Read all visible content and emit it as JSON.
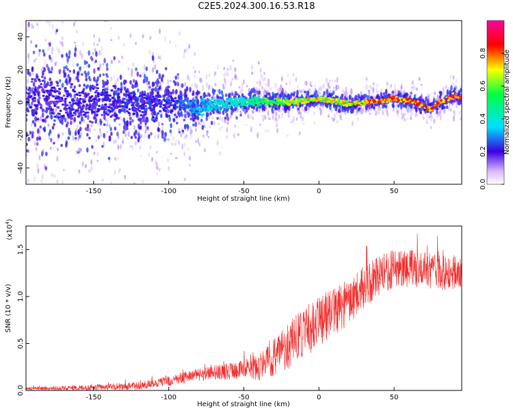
{
  "title": "C2E5.2024.300.16.53.R18",
  "chart_data": [
    {
      "type": "heatmap",
      "title": "",
      "xlabel": "Height of straight line (km)",
      "ylabel": "Frequency (Hz)",
      "xlim": [
        -195,
        95
      ],
      "ylim": [
        -50,
        50
      ],
      "xticks": [
        -150,
        -100,
        -50,
        0,
        50
      ],
      "yticks": [
        -40,
        -20,
        0,
        20,
        40
      ],
      "colorbar": {
        "label": "Normalized spectral amplitude",
        "range": [
          0,
          1
        ],
        "ticks": [
          "0.0",
          "0.2",
          "0.4",
          "0.6",
          "0.8"
        ],
        "colors": [
          "#ffffff",
          "#b06cff",
          "#3a00e0",
          "#00e0ff",
          "#00ff40",
          "#ffff00",
          "#ff0000",
          "#ff00a0"
        ]
      },
      "centerline": {
        "x": [
          -195,
          -150,
          -100,
          -80,
          -60,
          -40,
          -20,
          0,
          10,
          20,
          30,
          40,
          50,
          60,
          70,
          75,
          80,
          90,
          95
        ],
        "freq": [
          1,
          0,
          0,
          -3,
          0,
          1,
          0,
          2,
          1,
          -1,
          0,
          1,
          2,
          1,
          -2,
          -4,
          0,
          4,
          3
        ]
      },
      "amplitude_profile": {
        "x": [
          -195,
          -100,
          -80,
          -50,
          -20,
          0,
          30,
          60,
          95
        ],
        "amp": [
          0.2,
          0.25,
          0.35,
          0.5,
          0.7,
          0.75,
          0.85,
          0.9,
          0.95
        ]
      },
      "spread_hz": {
        "x": [
          -195,
          -150,
          -100,
          -80,
          -50,
          0,
          50,
          95
        ],
        "spread": [
          25,
          20,
          12,
          8,
          5,
          3,
          3,
          3
        ]
      }
    },
    {
      "type": "line",
      "title": "",
      "xlabel": "Height of straight line (km)",
      "ylabel": "SNR (10 * v/v)",
      "y_multiplier": "(x10",
      "y_multiplier_exp": "4",
      "y_multiplier_close": ")",
      "xlim": [
        -195,
        95
      ],
      "ylim": [
        0,
        1.75
      ],
      "xticks": [
        -150,
        -100,
        -50,
        0,
        50
      ],
      "yticks": [
        "0.0",
        "0.5",
        "1.0",
        "1.5"
      ],
      "series": [
        {
          "color": "#f03030",
          "mean_profile": {
            "x": [
              -195,
              -150,
              -120,
              -100,
              -80,
              -60,
              -40,
              -30,
              -20,
              -10,
              0,
              10,
              20,
              30,
              40,
              50,
              60,
              70,
              80,
              95
            ],
            "y": [
              0.02,
              0.03,
              0.05,
              0.1,
              0.17,
              0.2,
              0.25,
              0.35,
              0.48,
              0.62,
              0.75,
              0.85,
              0.95,
              1.1,
              1.22,
              1.3,
              1.3,
              1.28,
              1.25,
              1.25
            ]
          },
          "noise_profile": {
            "x": [
              -195,
              -100,
              -50,
              -20,
              0,
              30,
              95
            ],
            "amp": [
              0.015,
              0.05,
              0.1,
              0.25,
              0.3,
              0.22,
              0.18
            ]
          }
        }
      ]
    }
  ]
}
